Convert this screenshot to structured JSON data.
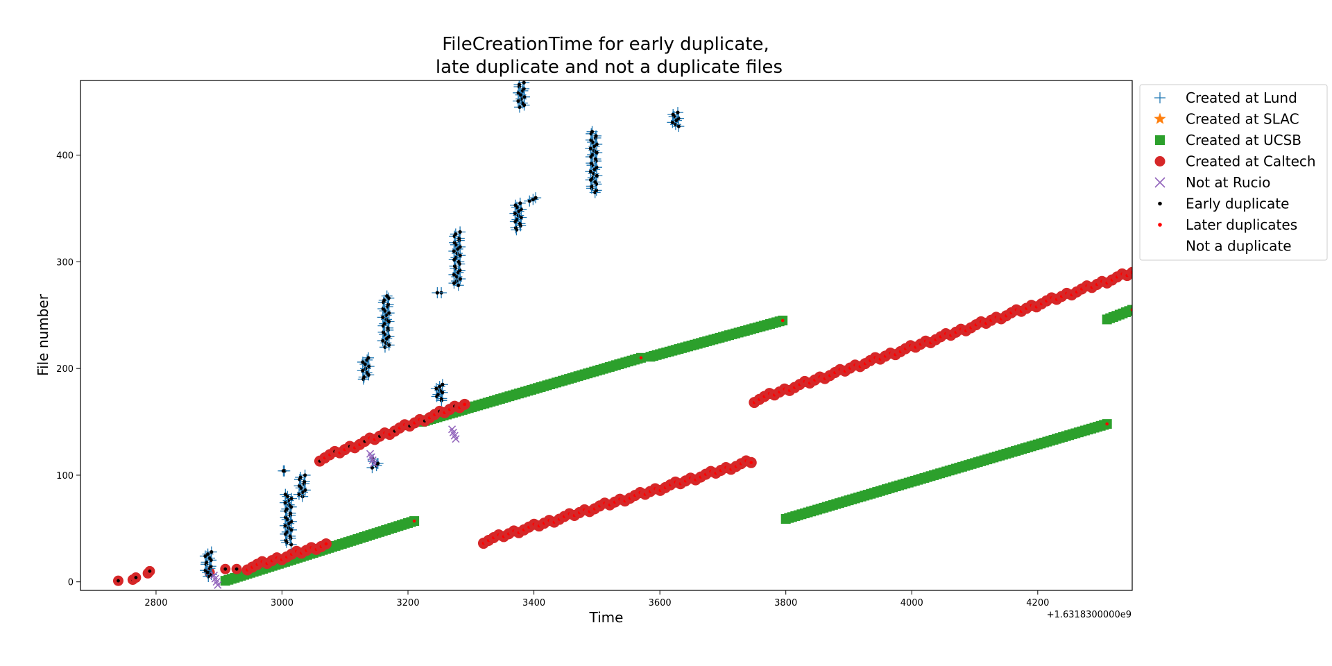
{
  "chart_data": {
    "type": "scatter",
    "title_line1": "FileCreationTime for early duplicate,",
    "title_line2": "late duplicate and not a duplicate files",
    "xlabel": "Time",
    "ylabel": "File number",
    "x_offset_label": "+1.6318300000e9",
    "xlim": [
      2680,
      4350
    ],
    "ylim": [
      -8,
      470
    ],
    "xticks": [
      2800,
      3000,
      3200,
      3400,
      3600,
      3800,
      4000,
      4200
    ],
    "yticks": [
      0,
      100,
      200,
      300,
      400
    ],
    "grid": false,
    "legend_position": "outside-right",
    "colors": {
      "lund": "#1f77b4",
      "slac": "#ff7f0e",
      "ucsb": "#2ca02c",
      "caltech": "#d62728",
      "rucio": "#9467bd",
      "early": "#000000",
      "later": "#ff0000"
    },
    "legend": [
      {
        "label": "Created at Lund",
        "marker": "plus",
        "color": "#1f77b4"
      },
      {
        "label": "Created at SLAC",
        "marker": "star",
        "color": "#ff7f0e"
      },
      {
        "label": "Created at UCSB",
        "marker": "square",
        "color": "#2ca02c"
      },
      {
        "label": "Created at Caltech",
        "marker": "circle",
        "color": "#d62728"
      },
      {
        "label": "Not at Rucio",
        "marker": "x",
        "color": "#9467bd"
      },
      {
        "label": "Early duplicate",
        "marker": "dot",
        "color": "#000000"
      },
      {
        "label": "Later duplicates",
        "marker": "dot",
        "color": "#ff0000"
      },
      {
        "label": "Not a duplicate",
        "marker": "none",
        "color": "#ffffff"
      }
    ],
    "series": [
      {
        "name": "Created at UCSB",
        "segments": [
          {
            "x0": 2910,
            "y0": 1,
            "x1": 3210,
            "y1": 57
          },
          {
            "x0": 3222,
            "y0": 150,
            "x1": 3570,
            "y1": 210
          },
          {
            "x0": 3585,
            "y0": 211,
            "x1": 3795,
            "y1": 245
          },
          {
            "x0": 3800,
            "y0": 59,
            "x1": 4310,
            "y1": 148
          },
          {
            "x0": 4310,
            "y0": 246,
            "x1": 4350,
            "y1": 255
          }
        ]
      },
      {
        "name": "Created at Caltech",
        "points": [
          [
            2740,
            1
          ],
          [
            2763,
            2
          ],
          [
            2768,
            4
          ],
          [
            2787,
            8
          ],
          [
            2790,
            10
          ],
          [
            2885,
            9
          ],
          [
            2910,
            12
          ],
          [
            2928,
            12
          ]
        ],
        "segments": [
          {
            "x0": 2945,
            "y0": 13,
            "x1": 3070,
            "y1": 35
          },
          {
            "x0": 3060,
            "y0": 115,
            "x1": 3290,
            "y1": 167
          },
          {
            "x0": 3320,
            "y0": 38,
            "x1": 3745,
            "y1": 113
          },
          {
            "x0": 3750,
            "y0": 170,
            "x1": 4350,
            "y1": 290
          }
        ]
      },
      {
        "name": "Created at Lund",
        "clusters": [
          {
            "x": 2883,
            "y0": 5,
            "y1": 28
          },
          {
            "x": 3000,
            "y0": 104,
            "y1": 104
          },
          {
            "x": 3010,
            "y0": 35,
            "y1": 82
          },
          {
            "x": 3032,
            "y0": 80,
            "y1": 100
          },
          {
            "x": 3133,
            "y0": 190,
            "y1": 210
          },
          {
            "x": 3148,
            "y0": 107,
            "y1": 115
          },
          {
            "x": 3165,
            "y0": 220,
            "y1": 268
          },
          {
            "x": 3250,
            "y0": 170,
            "y1": 185
          },
          {
            "x": 3248,
            "y0": 271,
            "y1": 271
          },
          {
            "x": 3278,
            "y0": 278,
            "y1": 328
          },
          {
            "x": 3375,
            "y0": 330,
            "y1": 355
          },
          {
            "x": 3398,
            "y0": 357,
            "y1": 360
          },
          {
            "x": 3380,
            "y0": 445,
            "y1": 468
          },
          {
            "x": 3495,
            "y0": 365,
            "y1": 422
          },
          {
            "x": 3625,
            "y0": 427,
            "y1": 440
          }
        ]
      },
      {
        "name": "Not at Rucio",
        "points": [
          [
            2892,
            6
          ],
          [
            3140,
            120
          ],
          [
            3270,
            143
          ]
        ]
      }
    ]
  }
}
